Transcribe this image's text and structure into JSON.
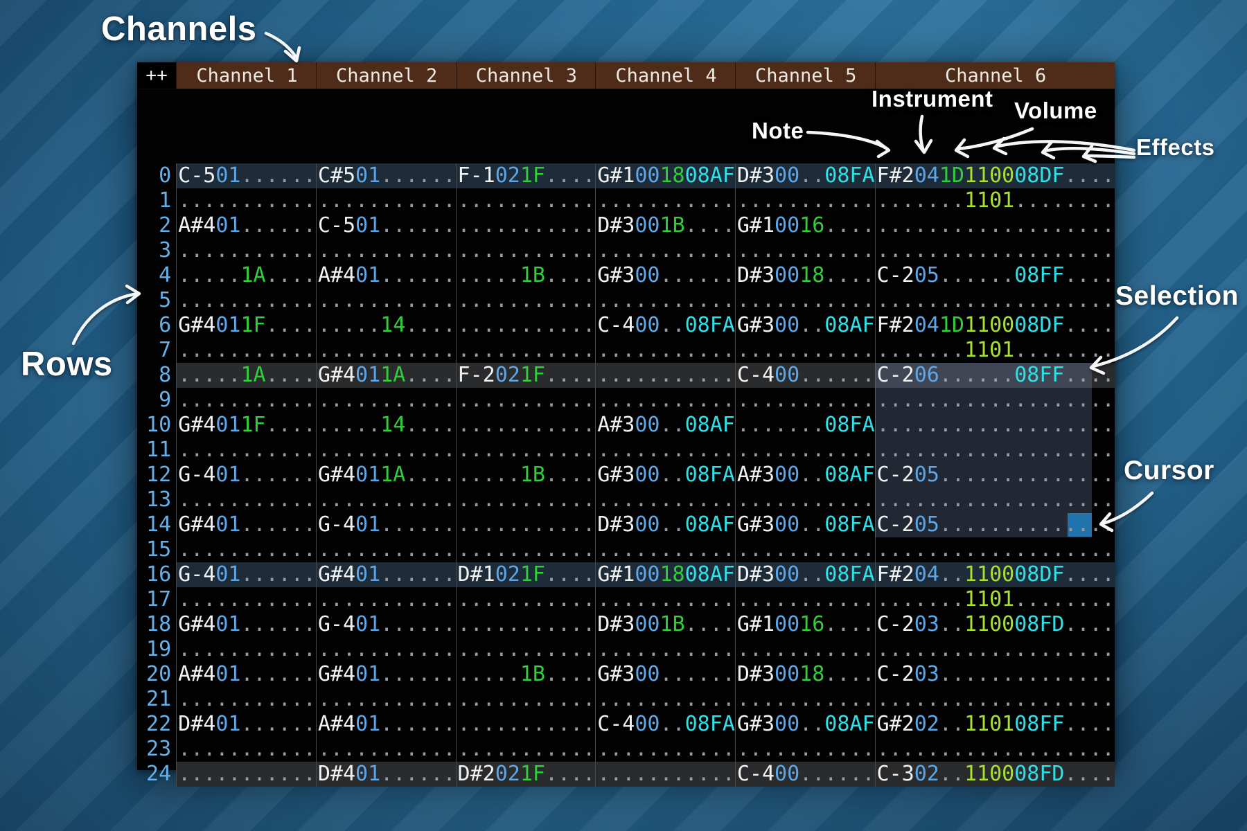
{
  "annotations": {
    "channels": "Channels",
    "rows": "Rows",
    "note": "Note",
    "instrument": "Instrument",
    "volume": "Volume",
    "effects": "Effects",
    "selection": "Selection",
    "cursor": "Cursor"
  },
  "tracker": {
    "corner_label": "++",
    "channel_headers": [
      "Channel 1",
      "Channel 2",
      "Channel 3",
      "Channel 4",
      "Channel 5",
      "Channel 6"
    ],
    "colors": {
      "note": "#f2f2f2",
      "instrument": "#5da6e8",
      "volume": "#30cf3a",
      "effect_cyan": "#2fe0e8",
      "effect_lime": "#a8e22e",
      "empty_dot": "#989da2",
      "row_number": "#66b0ea",
      "header_bg": "#4e2c19",
      "highlight_major": "#1e2b38",
      "highlight_minor": "#2a2b2d",
      "selection": "rgba(130,152,205,0.25)",
      "cursor": "#2173ac"
    },
    "selection": {
      "channel": 6,
      "from_row": 8,
      "to_row": 14,
      "from_col_ch": 0,
      "to_col_ch": 17.2
    },
    "cursor": {
      "row": 14,
      "channel": 6,
      "col_ch": 15.3
    },
    "rows": [
      {
        "n": 0,
        "highlight": "major",
        "cells": [
          [
            "C-5",
            "01",
            "",
            ""
          ],
          [
            "C#5",
            "01",
            "",
            ""
          ],
          [
            "F-1",
            "02",
            "1F",
            ""
          ],
          [
            "G#1",
            "00",
            "18",
            "08AF"
          ],
          [
            "D#3",
            "00",
            "",
            "08FA"
          ],
          [
            "F#2",
            "04",
            "1D",
            "1100",
            "08DF",
            ""
          ]
        ]
      },
      {
        "n": 1,
        "highlight": null,
        "cells": [
          [],
          [],
          [],
          [],
          [],
          [
            "",
            "",
            "",
            "1101",
            "",
            ""
          ]
        ]
      },
      {
        "n": 2,
        "highlight": null,
        "cells": [
          [
            "A#4",
            "01",
            "",
            ""
          ],
          [
            "C-5",
            "01",
            "",
            ""
          ],
          [],
          [
            "D#3",
            "00",
            "1B",
            ""
          ],
          [
            "G#1",
            "00",
            "16",
            ""
          ],
          []
        ]
      },
      {
        "n": 3,
        "highlight": null,
        "cells": [
          [],
          [],
          [],
          [],
          [],
          []
        ]
      },
      {
        "n": 4,
        "highlight": null,
        "cells": [
          [
            "",
            "",
            "1A",
            ""
          ],
          [
            "A#4",
            "01",
            "",
            ""
          ],
          [
            "",
            "",
            "1B",
            ""
          ],
          [
            "G#3",
            "00",
            "",
            ""
          ],
          [
            "D#3",
            "00",
            "18",
            ""
          ],
          [
            "C-2",
            "05",
            "",
            "",
            "08FF",
            ""
          ]
        ]
      },
      {
        "n": 5,
        "highlight": null,
        "cells": [
          [],
          [],
          [],
          [],
          [],
          []
        ]
      },
      {
        "n": 6,
        "highlight": null,
        "cells": [
          [
            "G#4",
            "01",
            "1F",
            ""
          ],
          [
            "",
            "",
            "14",
            ""
          ],
          [],
          [
            "C-4",
            "00",
            "",
            "08FA"
          ],
          [
            "G#3",
            "00",
            "",
            "08AF"
          ],
          [
            "F#2",
            "04",
            "1D",
            "1100",
            "08DF",
            ""
          ]
        ]
      },
      {
        "n": 7,
        "highlight": null,
        "cells": [
          [],
          [],
          [],
          [],
          [],
          [
            "",
            "",
            "",
            "1101",
            "",
            ""
          ]
        ]
      },
      {
        "n": 8,
        "highlight": "minor",
        "cells": [
          [
            "",
            "",
            "1A",
            ""
          ],
          [
            "G#4",
            "01",
            "1A",
            ""
          ],
          [
            "F-2",
            "02",
            "1F",
            ""
          ],
          [],
          [
            "C-4",
            "00",
            "",
            ""
          ],
          [
            "C-2",
            "06",
            "",
            "",
            "08FF",
            ""
          ]
        ]
      },
      {
        "n": 9,
        "highlight": null,
        "cells": [
          [],
          [],
          [],
          [],
          [],
          []
        ]
      },
      {
        "n": 10,
        "highlight": null,
        "cells": [
          [
            "G#4",
            "01",
            "1F",
            ""
          ],
          [
            "",
            "",
            "14",
            ""
          ],
          [],
          [
            "A#3",
            "00",
            "",
            "08AF"
          ],
          [
            "",
            "",
            "",
            "08FA"
          ],
          []
        ]
      },
      {
        "n": 11,
        "highlight": null,
        "cells": [
          [],
          [],
          [],
          [],
          [],
          []
        ]
      },
      {
        "n": 12,
        "highlight": null,
        "cells": [
          [
            "G-4",
            "01",
            "",
            ""
          ],
          [
            "G#4",
            "01",
            "1A",
            ""
          ],
          [
            "",
            "",
            "1B",
            ""
          ],
          [
            "G#3",
            "00",
            "",
            "08FA"
          ],
          [
            "A#3",
            "00",
            "",
            "08AF"
          ],
          [
            "C-2",
            "05",
            "",
            "",
            "",
            ""
          ]
        ]
      },
      {
        "n": 13,
        "highlight": null,
        "cells": [
          [],
          [],
          [],
          [],
          [],
          []
        ]
      },
      {
        "n": 14,
        "highlight": null,
        "cells": [
          [
            "G#4",
            "01",
            "",
            ""
          ],
          [
            "G-4",
            "01",
            "",
            ""
          ],
          [],
          [
            "D#3",
            "00",
            "",
            "08AF"
          ],
          [
            "G#3",
            "00",
            "",
            "08FA"
          ],
          [
            "C-2",
            "05",
            "",
            "",
            "",
            ""
          ]
        ]
      },
      {
        "n": 15,
        "highlight": null,
        "cells": [
          [],
          [],
          [],
          [],
          [],
          []
        ]
      },
      {
        "n": 16,
        "highlight": "major",
        "cells": [
          [
            "G-4",
            "01",
            "",
            ""
          ],
          [
            "G#4",
            "01",
            "",
            ""
          ],
          [
            "D#1",
            "02",
            "1F",
            ""
          ],
          [
            "G#1",
            "00",
            "18",
            "08AF"
          ],
          [
            "D#3",
            "00",
            "",
            "08FA"
          ],
          [
            "F#2",
            "04",
            "",
            "1100",
            "08DF",
            ""
          ]
        ]
      },
      {
        "n": 17,
        "highlight": null,
        "cells": [
          [],
          [],
          [],
          [],
          [],
          [
            "",
            "",
            "",
            "1101",
            "",
            ""
          ]
        ]
      },
      {
        "n": 18,
        "highlight": null,
        "cells": [
          [
            "G#4",
            "01",
            "",
            ""
          ],
          [
            "G-4",
            "01",
            "",
            ""
          ],
          [],
          [
            "D#3",
            "00",
            "1B",
            ""
          ],
          [
            "G#1",
            "00",
            "16",
            ""
          ],
          [
            "C-2",
            "03",
            "",
            "1100",
            "08FD",
            ""
          ]
        ]
      },
      {
        "n": 19,
        "highlight": null,
        "cells": [
          [],
          [],
          [],
          [],
          [],
          []
        ]
      },
      {
        "n": 20,
        "highlight": null,
        "cells": [
          [
            "A#4",
            "01",
            "",
            ""
          ],
          [
            "G#4",
            "01",
            "",
            ""
          ],
          [
            "",
            "",
            "1B",
            ""
          ],
          [
            "G#3",
            "00",
            "",
            ""
          ],
          [
            "D#3",
            "00",
            "18",
            ""
          ],
          [
            "C-2",
            "03",
            "",
            "",
            "",
            ""
          ]
        ]
      },
      {
        "n": 21,
        "highlight": null,
        "cells": [
          [],
          [],
          [],
          [],
          [],
          []
        ]
      },
      {
        "n": 22,
        "highlight": null,
        "cells": [
          [
            "D#4",
            "01",
            "",
            ""
          ],
          [
            "A#4",
            "01",
            "",
            ""
          ],
          [],
          [
            "C-4",
            "00",
            "",
            "08FA"
          ],
          [
            "G#3",
            "00",
            "",
            "08AF"
          ],
          [
            "G#2",
            "02",
            "",
            "1101",
            "08FF",
            ""
          ]
        ]
      },
      {
        "n": 23,
        "highlight": null,
        "cells": [
          [],
          [],
          [],
          [],
          [],
          []
        ]
      },
      {
        "n": 24,
        "highlight": "minor",
        "cells": [
          [],
          [
            "D#4",
            "01",
            "",
            ""
          ],
          [
            "D#2",
            "02",
            "1F",
            ""
          ],
          [],
          [
            "C-4",
            "00",
            "",
            ""
          ],
          [
            "C-3",
            "02",
            "",
            "1100",
            "08FD",
            ""
          ]
        ]
      }
    ]
  }
}
